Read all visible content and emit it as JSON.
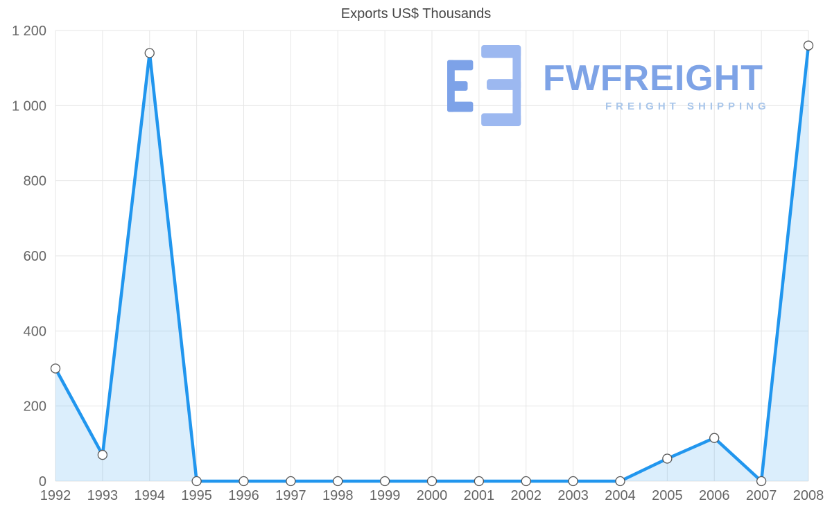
{
  "chart_data": {
    "type": "area",
    "title": "Exports US$ Thousands",
    "categories": [
      "1992",
      "1993",
      "1994",
      "1995",
      "1996",
      "1997",
      "1998",
      "1999",
      "2000",
      "2001",
      "2002",
      "2003",
      "2004",
      "2005",
      "2006",
      "2007",
      "2008"
    ],
    "values": [
      300,
      70,
      1140,
      0,
      0,
      0,
      0,
      0,
      0,
      0,
      0,
      0,
      0,
      60,
      115,
      0,
      1160
    ],
    "xlabel": "",
    "ylabel": "",
    "ylim": [
      0,
      1200
    ],
    "ytick_step": 200,
    "ytick_labels": [
      "0",
      "200",
      "400",
      "600",
      "800",
      "1 000",
      "1 200"
    ],
    "grid": true,
    "legend": "none",
    "line_color": "#2196ee",
    "fill_color": "rgba(33,150,238,0.16)",
    "marker_fill": "#ffffff",
    "marker_stroke": "#555555",
    "grid_color": "#e6e6e6",
    "label_color": "#666666",
    "title_color": "#474747"
  },
  "watermark": {
    "brand": "FWFREIGHT",
    "tagline": "FREIGHT SHIPPING",
    "brand_color": "#7ea3e6",
    "tagline_color": "#a9c6ea",
    "logo_color_left": "#7da2e8",
    "logo_color_right": "#9cb8f0"
  }
}
